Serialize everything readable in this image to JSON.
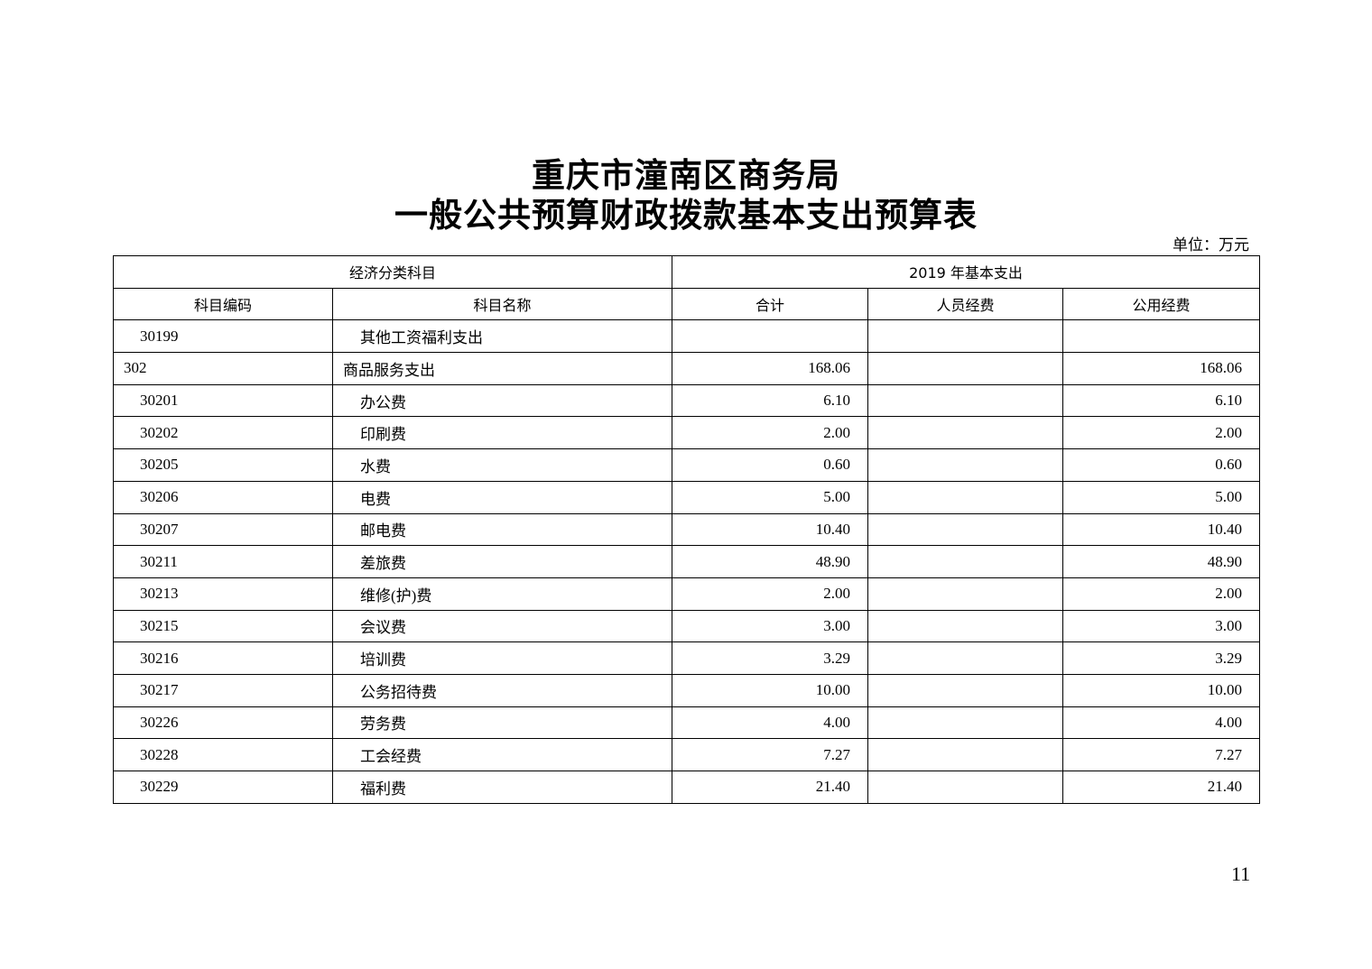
{
  "title_line1": "重庆市潼南区商务局",
  "title_line2": "一般公共预算财政拨款基本支出预算表",
  "unit": "单位：万元",
  "header": {
    "group1": "经济分类科目",
    "group2": "2019 年基本支出",
    "columns": [
      "科目编码",
      "科目名称",
      "合计",
      "人员经费",
      "公用经费"
    ]
  },
  "rows": [
    {
      "code": "30199",
      "name": "其他工资福利支出",
      "total": "",
      "personnel": "",
      "public": "",
      "sub": true
    },
    {
      "code": "302",
      "name": "商品服务支出",
      "total": "168.06",
      "personnel": "",
      "public": "168.06",
      "sub": false
    },
    {
      "code": "30201",
      "name": "办公费",
      "total": "6.10",
      "personnel": "",
      "public": "6.10",
      "sub": true
    },
    {
      "code": "30202",
      "name": "印刷费",
      "total": "2.00",
      "personnel": "",
      "public": "2.00",
      "sub": true
    },
    {
      "code": "30205",
      "name": "水费",
      "total": "0.60",
      "personnel": "",
      "public": "0.60",
      "sub": true
    },
    {
      "code": "30206",
      "name": "电费",
      "total": "5.00",
      "personnel": "",
      "public": "5.00",
      "sub": true
    },
    {
      "code": "30207",
      "name": "邮电费",
      "total": "10.40",
      "personnel": "",
      "public": "10.40",
      "sub": true
    },
    {
      "code": "30211",
      "name": "差旅费",
      "total": "48.90",
      "personnel": "",
      "public": "48.90",
      "sub": true
    },
    {
      "code": "30213",
      "name": "维修(护)费",
      "total": "2.00",
      "personnel": "",
      "public": "2.00",
      "sub": true
    },
    {
      "code": "30215",
      "name": "会议费",
      "total": "3.00",
      "personnel": "",
      "public": "3.00",
      "sub": true
    },
    {
      "code": "30216",
      "name": "培训费",
      "total": "3.29",
      "personnel": "",
      "public": "3.29",
      "sub": true
    },
    {
      "code": "30217",
      "name": "公务招待费",
      "total": "10.00",
      "personnel": "",
      "public": "10.00",
      "sub": true
    },
    {
      "code": "30226",
      "name": "劳务费",
      "total": "4.00",
      "personnel": "",
      "public": "4.00",
      "sub": true
    },
    {
      "code": "30228",
      "name": "工会经费",
      "total": "7.27",
      "personnel": "",
      "public": "7.27",
      "sub": true
    },
    {
      "code": "30229",
      "name": "福利费",
      "total": "21.40",
      "personnel": "",
      "public": "21.40",
      "sub": true
    }
  ],
  "page_number": "11"
}
